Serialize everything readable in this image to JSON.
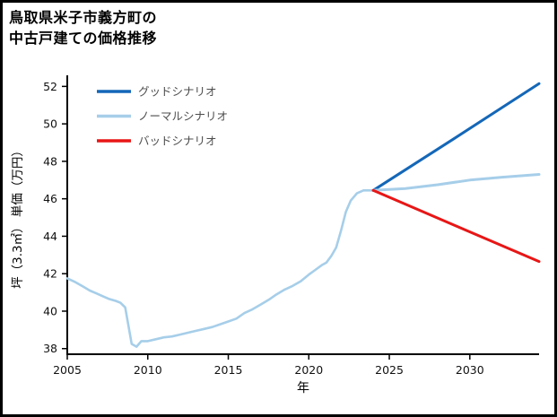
{
  "title": "鳥取県米子市義方町の\n中古戸建ての価格推移",
  "chart_data": {
    "type": "line",
    "title": "鳥取県米子市義方町の中古戸建ての価格推移",
    "xlabel": "年",
    "ylabel": "坪（3.3㎡） 単価（万円）",
    "xlim": [
      2005,
      2034.3
    ],
    "ylim": [
      37.7,
      52.4
    ],
    "xticks": [
      2005,
      2010,
      2015,
      2020,
      2025,
      2030
    ],
    "yticks": [
      38,
      40,
      42,
      44,
      46,
      48,
      50,
      52
    ],
    "grid": false,
    "legend_position": "upper-left",
    "legend": [
      {
        "label": "グッドシナリオ",
        "color": "#1467b8"
      },
      {
        "label": "ノーマルシナリオ",
        "color": "#a6cee9"
      },
      {
        "label": "バッドシナリオ",
        "color": "#e81616"
      }
    ],
    "series": [
      {
        "name": "historical",
        "color": "#a6cee9",
        "width": 2.6,
        "x": [
          2005,
          2005.5,
          2006,
          2006.4,
          2006.8,
          2007.2,
          2007.6,
          2008,
          2008.3,
          2008.6,
          2009,
          2009.3,
          2009.6,
          2010,
          2010.5,
          2011,
          2011.5,
          2012,
          2012.5,
          2013,
          2013.5,
          2014,
          2014.5,
          2015,
          2015.5,
          2016,
          2016.5,
          2017,
          2017.5,
          2018,
          2018.5,
          2019,
          2019.5,
          2020,
          2020.4,
          2020.8,
          2021.1,
          2021.4,
          2021.7,
          2022,
          2022.3,
          2022.6,
          2023,
          2023.4,
          2024
        ],
        "y": [
          41.75,
          41.55,
          41.3,
          41.1,
          40.95,
          40.8,
          40.65,
          40.55,
          40.45,
          40.2,
          38.25,
          38.1,
          38.4,
          38.4,
          38.5,
          38.6,
          38.65,
          38.75,
          38.85,
          38.95,
          39.05,
          39.15,
          39.3,
          39.45,
          39.6,
          39.9,
          40.1,
          40.35,
          40.6,
          40.9,
          41.15,
          41.35,
          41.6,
          41.95,
          42.2,
          42.45,
          42.6,
          42.95,
          43.4,
          44.3,
          45.3,
          45.9,
          46.3,
          46.45,
          46.45
        ]
      },
      {
        "name": "good-scenario",
        "color": "#1467b8",
        "width": 3,
        "x": [
          2024,
          2029,
          2034.3
        ],
        "y": [
          46.45,
          49.2,
          52.15
        ]
      },
      {
        "name": "normal-scenario",
        "color": "#a6cee9",
        "width": 3,
        "x": [
          2024,
          2026,
          2028,
          2030,
          2032,
          2034.3
        ],
        "y": [
          46.45,
          46.55,
          46.75,
          47.0,
          47.15,
          47.3
        ]
      },
      {
        "name": "bad-scenario",
        "color": "#e81616",
        "width": 3,
        "x": [
          2024,
          2029,
          2034.3
        ],
        "y": [
          46.45,
          44.6,
          42.65
        ]
      }
    ]
  }
}
